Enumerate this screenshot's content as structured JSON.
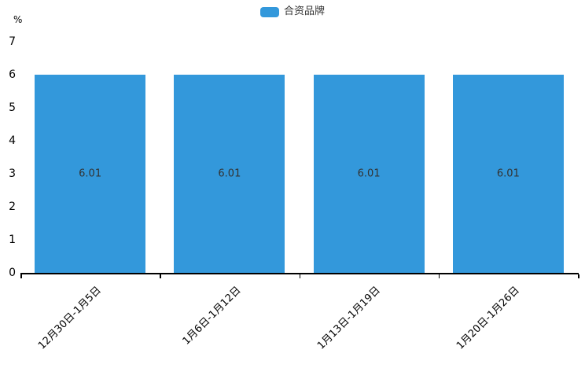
{
  "legend": {
    "label": "合资品牌"
  },
  "colors": {
    "bar": "#3398DB",
    "axis": "#000000",
    "value_label_text": "#333333",
    "legend_text": "#333333"
  },
  "chart_data": {
    "type": "bar",
    "title": "",
    "categories": [
      "12月30日-1月5日",
      "1月6日-1月12日",
      "1月13日-1月19日",
      "1月20日-1月26日"
    ],
    "series": [
      {
        "name": "合资品牌",
        "values": [
          6.01,
          6.01,
          6.01,
          6.01
        ]
      }
    ],
    "value_labels": [
      "6.01",
      "6.01",
      "6.01",
      "6.01"
    ],
    "xlabel": "",
    "ylabel": "%",
    "ylim": [
      0,
      7
    ],
    "yticks": [
      0,
      1,
      2,
      3,
      4,
      5,
      6,
      7
    ],
    "grid": false,
    "legend_position": "top-center",
    "x_label_rotation_deg": 45
  }
}
